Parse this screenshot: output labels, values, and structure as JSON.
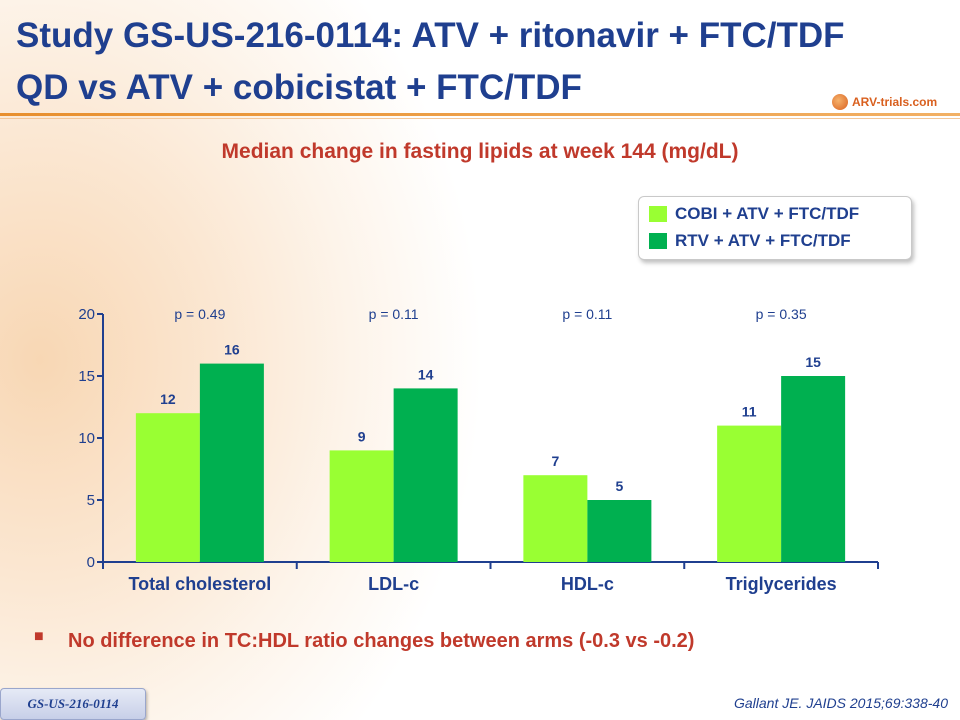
{
  "title": {
    "line1": "Study GS-US-216-0114: ATV + ritonavir + FTC/TDF",
    "line2": "QD vs ATV + cobicistat + FTC/TDF"
  },
  "logo_text": "ARV-trials.com",
  "chart_data": {
    "type": "bar",
    "title": "Median change in fasting lipids at week 144 (mg/dL)",
    "categories": [
      "Total cholesterol",
      "LDL-c",
      "HDL-c",
      "Triglycerides"
    ],
    "series": [
      {
        "name": "COBI + ATV + FTC/TDF",
        "color": "#99ff33",
        "values": [
          12,
          9,
          7,
          11
        ]
      },
      {
        "name": "RTV + ATV + FTC/TDF",
        "color": "#00b050",
        "values": [
          16,
          14,
          5,
          15
        ]
      }
    ],
    "data_labels": [
      [
        "12",
        "9",
        "7",
        "11"
      ],
      [
        "16",
        "14",
        "5",
        "15"
      ]
    ],
    "p_values": [
      "p = 0.49",
      "p = 0.11",
      "p = 0.11",
      "p = 0.35"
    ],
    "yticks": [
      "0",
      "5",
      "10",
      "15",
      "20"
    ],
    "ylim": [
      0,
      20
    ],
    "grid": false,
    "legend_position": "top-right"
  },
  "bullet": {
    "symbol": "■",
    "text": "No difference in TC:HDL ratio changes between arms (-0.3 vs -0.2)"
  },
  "study_tab": "GS-US-216-0114",
  "citation": "Gallant JE. JAIDS 2015;69:338-40"
}
